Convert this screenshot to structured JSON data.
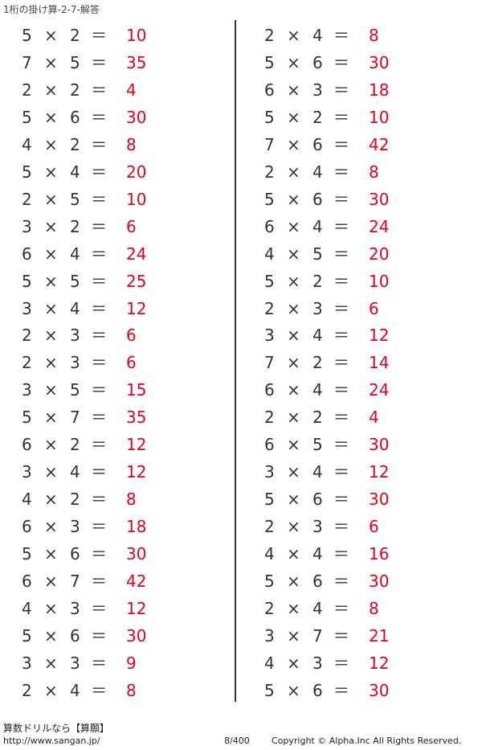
{
  "title": "1桁の掛け算-2-7-解答",
  "operator_times": "×",
  "operator_equals": "＝",
  "colors": {
    "answer": "#e8001c",
    "text": "#333333"
  },
  "left_column": [
    [
      "5",
      "2",
      "10"
    ],
    [
      "7",
      "5",
      "35"
    ],
    [
      "2",
      "2",
      "4"
    ],
    [
      "5",
      "6",
      "30"
    ],
    [
      "4",
      "2",
      "8"
    ],
    [
      "5",
      "4",
      "20"
    ],
    [
      "2",
      "5",
      "10"
    ],
    [
      "3",
      "2",
      "6"
    ],
    [
      "6",
      "4",
      "24"
    ],
    [
      "5",
      "5",
      "25"
    ],
    [
      "3",
      "4",
      "12"
    ],
    [
      "2",
      "3",
      "6"
    ],
    [
      "2",
      "3",
      "6"
    ],
    [
      "3",
      "5",
      "15"
    ],
    [
      "5",
      "7",
      "35"
    ],
    [
      "6",
      "2",
      "12"
    ],
    [
      "3",
      "4",
      "12"
    ],
    [
      "4",
      "2",
      "8"
    ],
    [
      "6",
      "3",
      "18"
    ],
    [
      "5",
      "6",
      "30"
    ],
    [
      "6",
      "7",
      "42"
    ],
    [
      "4",
      "3",
      "12"
    ],
    [
      "5",
      "6",
      "30"
    ],
    [
      "3",
      "3",
      "9"
    ],
    [
      "2",
      "4",
      "8"
    ]
  ],
  "right_column": [
    [
      "2",
      "4",
      "8"
    ],
    [
      "5",
      "6",
      "30"
    ],
    [
      "6",
      "3",
      "18"
    ],
    [
      "5",
      "2",
      "10"
    ],
    [
      "7",
      "6",
      "42"
    ],
    [
      "2",
      "4",
      "8"
    ],
    [
      "5",
      "6",
      "30"
    ],
    [
      "6",
      "4",
      "24"
    ],
    [
      "4",
      "5",
      "20"
    ],
    [
      "5",
      "2",
      "10"
    ],
    [
      "2",
      "3",
      "6"
    ],
    [
      "3",
      "4",
      "12"
    ],
    [
      "7",
      "2",
      "14"
    ],
    [
      "6",
      "4",
      "24"
    ],
    [
      "2",
      "2",
      "4"
    ],
    [
      "6",
      "5",
      "30"
    ],
    [
      "3",
      "4",
      "12"
    ],
    [
      "5",
      "6",
      "30"
    ],
    [
      "2",
      "3",
      "6"
    ],
    [
      "4",
      "4",
      "16"
    ],
    [
      "5",
      "6",
      "30"
    ],
    [
      "2",
      "4",
      "8"
    ],
    [
      "3",
      "7",
      "21"
    ],
    [
      "4",
      "3",
      "12"
    ],
    [
      "5",
      "6",
      "30"
    ]
  ],
  "footer": {
    "site_name": "算数ドリルなら【算願】",
    "url": "http://www.sangan.jp/",
    "page": "8/400",
    "copyright": "Copyright © Alpha.Inc All Rights Reserved."
  }
}
